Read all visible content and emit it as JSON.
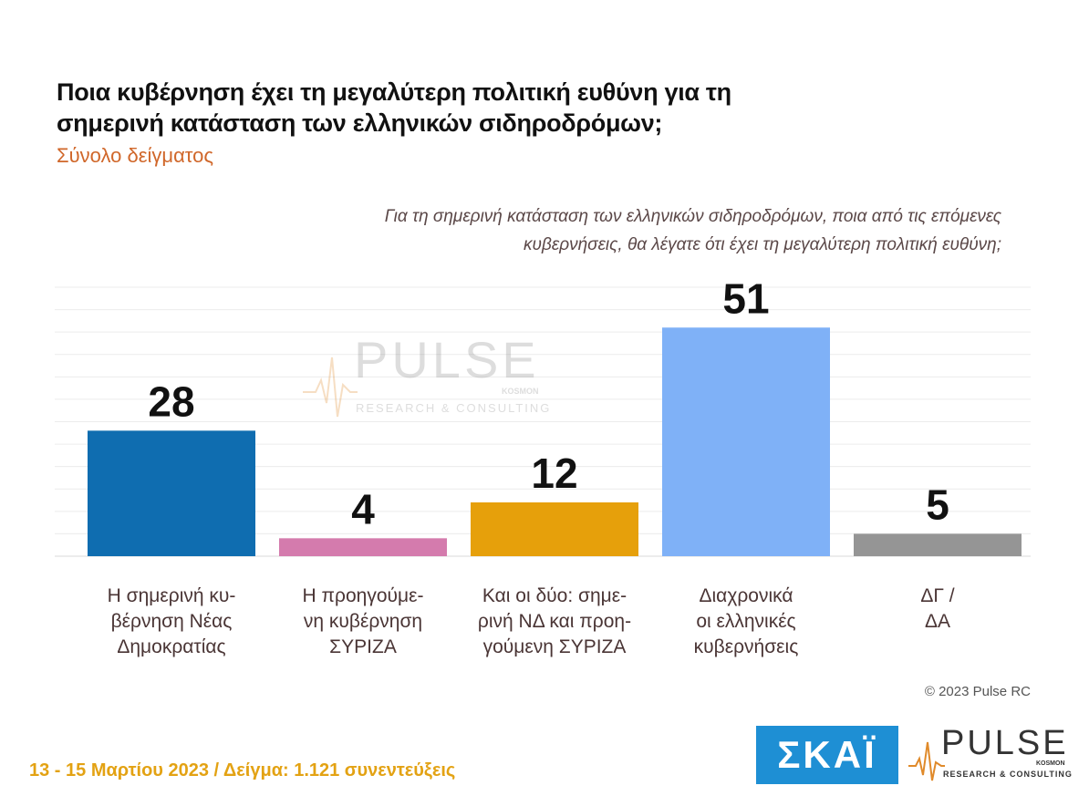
{
  "header": {
    "title": "Ποια κυβέρνηση έχει τη μεγαλύτερη πολιτική ευθύνη για τη σημερινή κατάσταση των ελληνικών σιδηροδρόμων;",
    "subtitle": "Σύνολο δείγματος",
    "question": "Για τη σημερινή κατάσταση των ελληνικών σιδηροδρόμων, ποια από τις επόμενες κυβερνήσεις, θα λέγατε ότι έχει τη μεγαλύτερη πολιτική ευθύνη;"
  },
  "chart_data": {
    "type": "bar",
    "categories": [
      "Η σημερινή κυ-\nβέρνηση Νέας\nΔημοκρατίας",
      "Η προηγούμε-\nνη κυβέρνηση\nΣΥΡΙΖΑ",
      "Και οι δύο: σημε-\nρινή ΝΔ και προη-\nγούμενη ΣΥΡΙΖΑ",
      "Διαχρονικά\nοι ελληνικές\nκυβερνήσεις",
      "ΔΓ /\nΔΑ"
    ],
    "values": [
      28,
      4,
      12,
      51,
      5
    ],
    "labels": [
      "28",
      "4",
      "12",
      "51",
      "5"
    ],
    "colors": [
      "#0f6db0",
      "#d47bad",
      "#e6a00b",
      "#7fb1f7",
      "#959595"
    ],
    "ylim": [
      0,
      60
    ],
    "grid": true,
    "legend": "none"
  },
  "footer": {
    "copyright": "© 2023 Pulse RC",
    "note": "13 - 15  Μαρτίου  2023  /  Δείγμα:  1.121 συνεντεύξεις"
  },
  "logos": {
    "skai": "ΣΚΑΪ",
    "pulse_word": "PULSE",
    "pulse_sub": "RESEARCH & CONSULTING",
    "pulse_kosmon": "KOSMON",
    "watermark_word": "PULSE",
    "watermark_sub": "RESEARCH & CONSULTING",
    "watermark_kosmon": "KOSMON"
  }
}
